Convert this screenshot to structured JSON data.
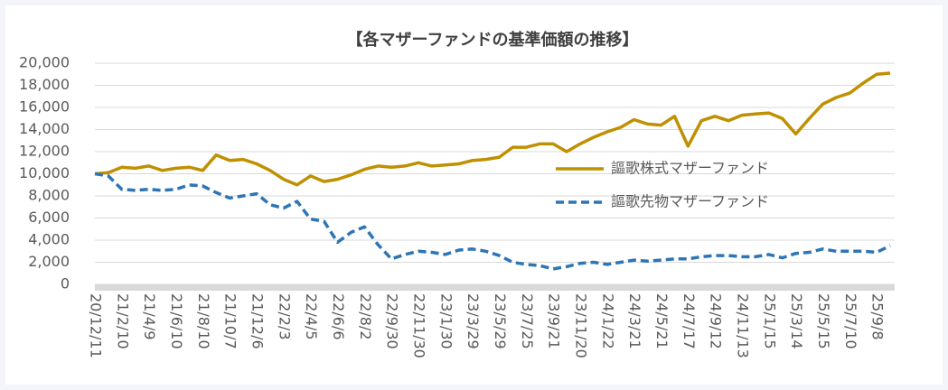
{
  "chart_data": {
    "type": "line",
    "title": "【各マザーファンドの基準価額の推移】",
    "categories": [
      "20/12/11",
      null,
      "21/2/10",
      null,
      "21/4/9",
      null,
      "21/6/10",
      null,
      "21/8/10",
      null,
      "21/10/7",
      null,
      "21/12/6",
      null,
      "22/2/3",
      null,
      "22/4/5",
      null,
      "22/6/6",
      null,
      "22/8/2",
      null,
      "22/9/30",
      null,
      "22/11/30",
      null,
      "23/1/30",
      null,
      "23/3/29",
      null,
      "23/5/29",
      null,
      "23/7/25",
      null,
      "23/9/21",
      null,
      "23/11/20",
      null,
      "24/1/22",
      null,
      "24/3/21",
      null,
      "24/5/21",
      null,
      "24/7/17",
      null,
      "24/9/12",
      null,
      "24/11/13",
      null,
      "25/1/15",
      null,
      "25/3/14",
      null,
      "25/5/15",
      null,
      "25/7/10",
      null,
      "25/9/8",
      null
    ],
    "series": [
      {
        "name": "謳歌株式マザーファンド",
        "color": "#bf9000",
        "dash": false,
        "values": [
          10000,
          10100,
          10600,
          10500,
          10700,
          10300,
          10500,
          10600,
          10300,
          11700,
          11200,
          11300,
          10900,
          10300,
          9500,
          9000,
          9800,
          9300,
          9500,
          9900,
          10400,
          10700,
          10600,
          10700,
          11000,
          10700,
          10800,
          10900,
          11200,
          11300,
          11500,
          12400,
          12400,
          12700,
          12700,
          12000,
          12700,
          13300,
          13800,
          14200,
          14900,
          14500,
          14400,
          15200,
          12500,
          14800,
          15200,
          14800,
          15300,
          15400,
          15500,
          15000,
          13600,
          15000,
          16300,
          16900,
          17300,
          18200,
          19000,
          19100
        ]
      },
      {
        "name": "謳歌先物マザーファンド",
        "color": "#2e75b6",
        "dash": true,
        "values": [
          10000,
          9800,
          8600,
          8500,
          8600,
          8500,
          8600,
          9000,
          8900,
          8300,
          7800,
          8000,
          8200,
          7200,
          6900,
          7500,
          5900,
          5700,
          3800,
          4700,
          5200,
          3600,
          2300,
          2700,
          3000,
          2900,
          2700,
          3100,
          3200,
          3000,
          2600,
          2000,
          1800,
          1700,
          1400,
          1600,
          1900,
          2000,
          1800,
          2000,
          2200,
          2100,
          2200,
          2300,
          2300,
          2500,
          2600,
          2600,
          2500,
          2500,
          2700,
          2400,
          2800,
          2900,
          3200,
          3000,
          3000,
          3000,
          2900,
          3500
        ]
      }
    ],
    "ylim": [
      0,
      20000
    ],
    "yticks": [
      0,
      {
        "value": 2000,
        "label": "2,000"
      },
      {
        "value": 4000,
        "label": "4,000"
      },
      {
        "value": 6000,
        "label": "6,000"
      },
      {
        "value": 8000,
        "label": "8,000"
      },
      {
        "value": 10000,
        "label": "10,000"
      },
      {
        "value": 12000,
        "label": "12,000"
      },
      {
        "value": 14000,
        "label": "14,000"
      },
      {
        "value": 16000,
        "label": "16,000"
      },
      {
        "value": 18000,
        "label": "18,000"
      },
      {
        "value": 20000,
        "label": "20,000"
      }
    ],
    "grid": true,
    "legend": "right"
  }
}
